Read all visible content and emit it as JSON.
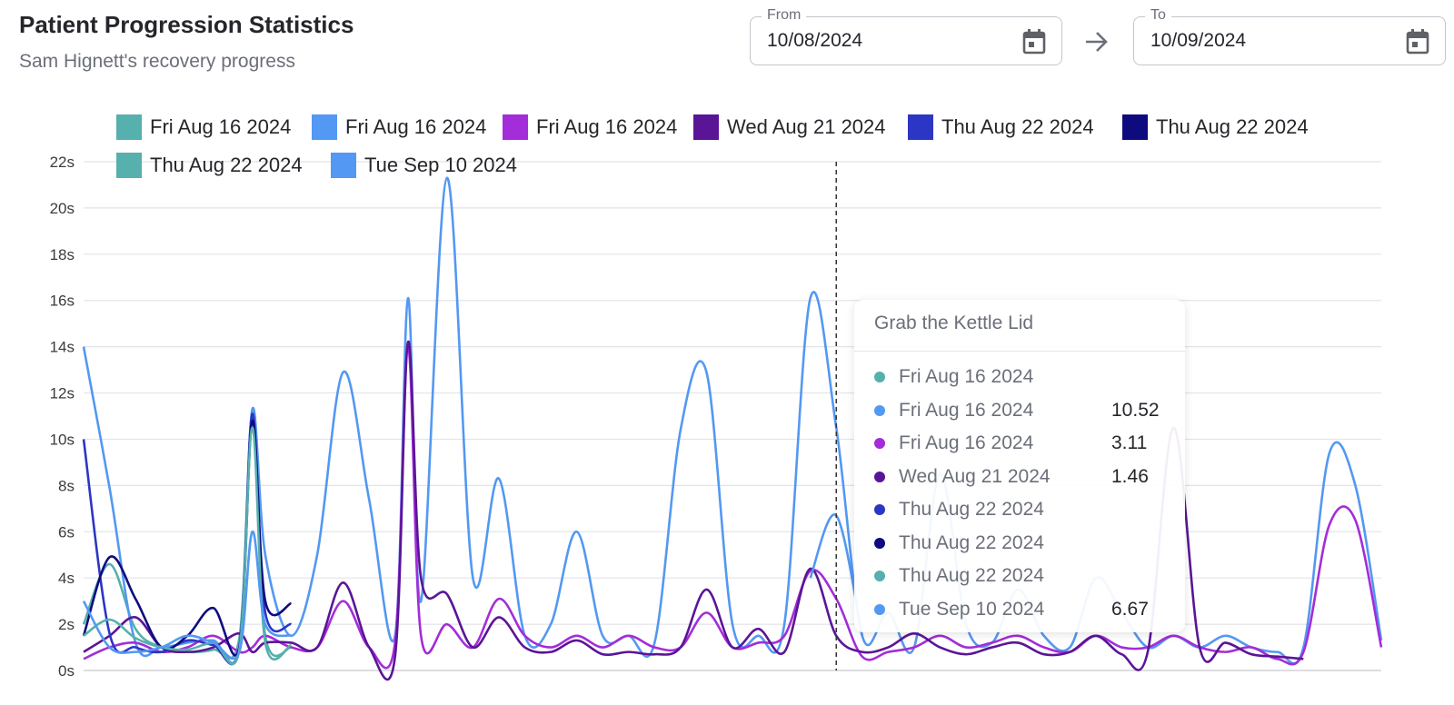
{
  "header": {
    "title": "Patient Progression Statistics",
    "subtitle": "Sam Hignett's recovery progress"
  },
  "date_range": {
    "from_label": "From",
    "from_value": "10/08/2024",
    "to_label": "To",
    "to_value": "10/09/2024"
  },
  "tooltip": {
    "title": "Grab the Kettle Lid",
    "rows": [
      {
        "name": "Fri Aug 16 2024",
        "value": "",
        "color": "#56b0ad"
      },
      {
        "name": "Fri Aug 16 2024",
        "value": "10.52",
        "color": "#5398f2"
      },
      {
        "name": "Fri Aug 16 2024",
        "value": "3.11",
        "color": "#a32dd8"
      },
      {
        "name": "Wed Aug 21 2024",
        "value": "1.46",
        "color": "#5a1597"
      },
      {
        "name": "Thu Aug 22 2024",
        "value": "",
        "color": "#2c36c4"
      },
      {
        "name": "Thu Aug 22 2024",
        "value": "",
        "color": "#0e0b7f"
      },
      {
        "name": "Thu Aug 22 2024",
        "value": "",
        "color": "#56b0ad"
      },
      {
        "name": "Tue Sep 10 2024",
        "value": "6.67",
        "color": "#5398f2"
      }
    ]
  },
  "chart_data": {
    "type": "line",
    "title": "",
    "xlabel": "",
    "ylabel": "",
    "ylim": [
      0,
      22
    ],
    "y_ticks": [
      "0s",
      "2s",
      "4s",
      "6s",
      "8s",
      "10s",
      "12s",
      "14s",
      "16s",
      "18s",
      "20s",
      "22s"
    ],
    "grid": true,
    "legend_position": "top",
    "cursor_x": 58,
    "x": [
      0,
      2,
      4,
      6,
      8,
      10,
      12,
      13,
      14,
      16,
      18,
      20,
      22,
      24,
      25,
      26,
      28,
      30,
      32,
      34,
      36,
      38,
      40,
      42,
      44,
      46,
      48,
      50,
      52,
      54,
      56,
      58,
      60,
      62,
      64,
      66,
      68,
      70,
      72,
      74,
      76,
      78,
      80,
      82,
      84,
      86,
      88,
      90,
      92,
      94,
      96,
      98,
      100
    ],
    "series": [
      {
        "name": "Fri Aug 16 2024",
        "color": "#56b0ad",
        "values": [
          2,
          4.6,
          1.8,
          1,
          0.8,
          0.9,
          1.4,
          11,
          1.5,
          1,
          null,
          null,
          null,
          null,
          null,
          null,
          null,
          null,
          null,
          null,
          null,
          null,
          null,
          null,
          null,
          null,
          null,
          null,
          null,
          null,
          null,
          null,
          null,
          null,
          null,
          null,
          null,
          null,
          null,
          null,
          null,
          null,
          null,
          null,
          null,
          null,
          null,
          null,
          null,
          null,
          null,
          null,
          null
        ]
      },
      {
        "name": "Fri Aug 16 2024",
        "color": "#5398f2",
        "values": [
          14,
          7.9,
          1.2,
          1,
          1.2,
          1.3,
          1,
          11.3,
          5,
          1.5,
          5,
          12.9,
          7.4,
          1.5,
          16.1,
          3,
          21.3,
          4,
          8.3,
          1.5,
          2,
          6,
          1.5,
          1.5,
          1.2,
          10.4,
          12.9,
          2,
          1.5,
          2,
          16.1,
          10.5,
          1.5,
          2.5,
          1,
          8.5,
          2,
          1.2,
          3.5,
          1.5,
          1,
          4,
          2.5,
          1,
          1.5,
          1,
          1.5,
          1,
          0.8,
          1,
          9.4,
          8,
          1.3
        ]
      },
      {
        "name": "Fri Aug 16 2024",
        "color": "#a32dd8",
        "values": [
          0.5,
          1,
          1.2,
          0.8,
          1,
          1.5,
          0.8,
          1,
          1.5,
          1,
          1,
          3,
          1,
          1.2,
          14,
          1.5,
          2,
          1,
          3.1,
          1.5,
          1,
          1.5,
          1,
          1.5,
          1,
          1,
          2.5,
          1,
          1.2,
          1.5,
          4.3,
          3.1,
          0.6,
          0.8,
          1,
          1.5,
          1,
          1.2,
          1.5,
          1,
          0.8,
          1.5,
          1,
          1,
          1.5,
          1,
          0.8,
          1,
          0.5,
          0.8,
          6.3,
          6.5,
          1
        ]
      },
      {
        "name": "Wed Aug 21 2024",
        "color": "#5a1597",
        "values": [
          0.8,
          1.5,
          2.3,
          1,
          0.8,
          1,
          1.6,
          0.8,
          1.2,
          1.2,
          1,
          3.8,
          1,
          0.6,
          14.2,
          4,
          3.3,
          1,
          2.3,
          1,
          0.8,
          1.3,
          0.7,
          0.8,
          0.7,
          1,
          3.5,
          1,
          1.8,
          0.8,
          4.4,
          1.5,
          0.8,
          1,
          1.6,
          1,
          0.7,
          1,
          1.2,
          0.7,
          0.8,
          1.5,
          0.7,
          0.8,
          10.5,
          1,
          1.2,
          0.7,
          0.6,
          0.5,
          null,
          null,
          null
        ]
      },
      {
        "name": "Thu Aug 22 2024",
        "color": "#2c36c4",
        "values": [
          10,
          1.6,
          1,
          0.8,
          1.3,
          1.1,
          1,
          11.1,
          2.5,
          2,
          null,
          null,
          null,
          null,
          null,
          null,
          null,
          null,
          null,
          null,
          null,
          null,
          null,
          null,
          null,
          null,
          null,
          null,
          null,
          null,
          null,
          null,
          null,
          null,
          null,
          null,
          null,
          null,
          null,
          null,
          null,
          null,
          null,
          null,
          null,
          null,
          null,
          null,
          null,
          null,
          null,
          null,
          null
        ]
      },
      {
        "name": "Thu Aug 22 2024",
        "color": "#0e0b7f",
        "values": [
          1.5,
          4.9,
          3.1,
          1,
          1.5,
          2.7,
          1,
          10.8,
          3,
          2.9,
          null,
          null,
          null,
          null,
          null,
          null,
          null,
          null,
          null,
          null,
          null,
          null,
          null,
          null,
          null,
          null,
          null,
          null,
          null,
          null,
          null,
          null,
          null,
          null,
          null,
          null,
          null,
          null,
          null,
          null,
          null,
          null,
          null,
          null,
          null,
          null,
          null,
          null,
          null,
          null,
          null,
          null,
          null
        ]
      },
      {
        "name": "Thu Aug 22 2024",
        "color": "#56b0ad",
        "values": [
          1.5,
          2.2,
          1.4,
          1,
          0.9,
          1.2,
          0.9,
          10.5,
          1.2,
          1.1,
          null,
          null,
          null,
          null,
          null,
          null,
          null,
          null,
          null,
          null,
          null,
          null,
          null,
          null,
          null,
          null,
          null,
          null,
          null,
          null,
          null,
          null,
          null,
          null,
          null,
          null,
          null,
          null,
          null,
          null,
          null,
          null,
          null,
          null,
          null,
          null,
          null,
          null,
          null,
          null,
          null,
          null,
          null
        ]
      },
      {
        "name": "Tue Sep 10 2024",
        "color": "#5398f2",
        "values": [
          3,
          1,
          0.8,
          1,
          1.5,
          1.2,
          0.8,
          6,
          2,
          1.5,
          null,
          null,
          null,
          null,
          null,
          null,
          null,
          null,
          null,
          null,
          null,
          null,
          null,
          null,
          null,
          null,
          null,
          null,
          null,
          null,
          4,
          6.7,
          1.5,
          null,
          null,
          null,
          null,
          null,
          null,
          null,
          null,
          null,
          null,
          null,
          null,
          null,
          null,
          null,
          null,
          null,
          null,
          null,
          null
        ]
      }
    ]
  }
}
